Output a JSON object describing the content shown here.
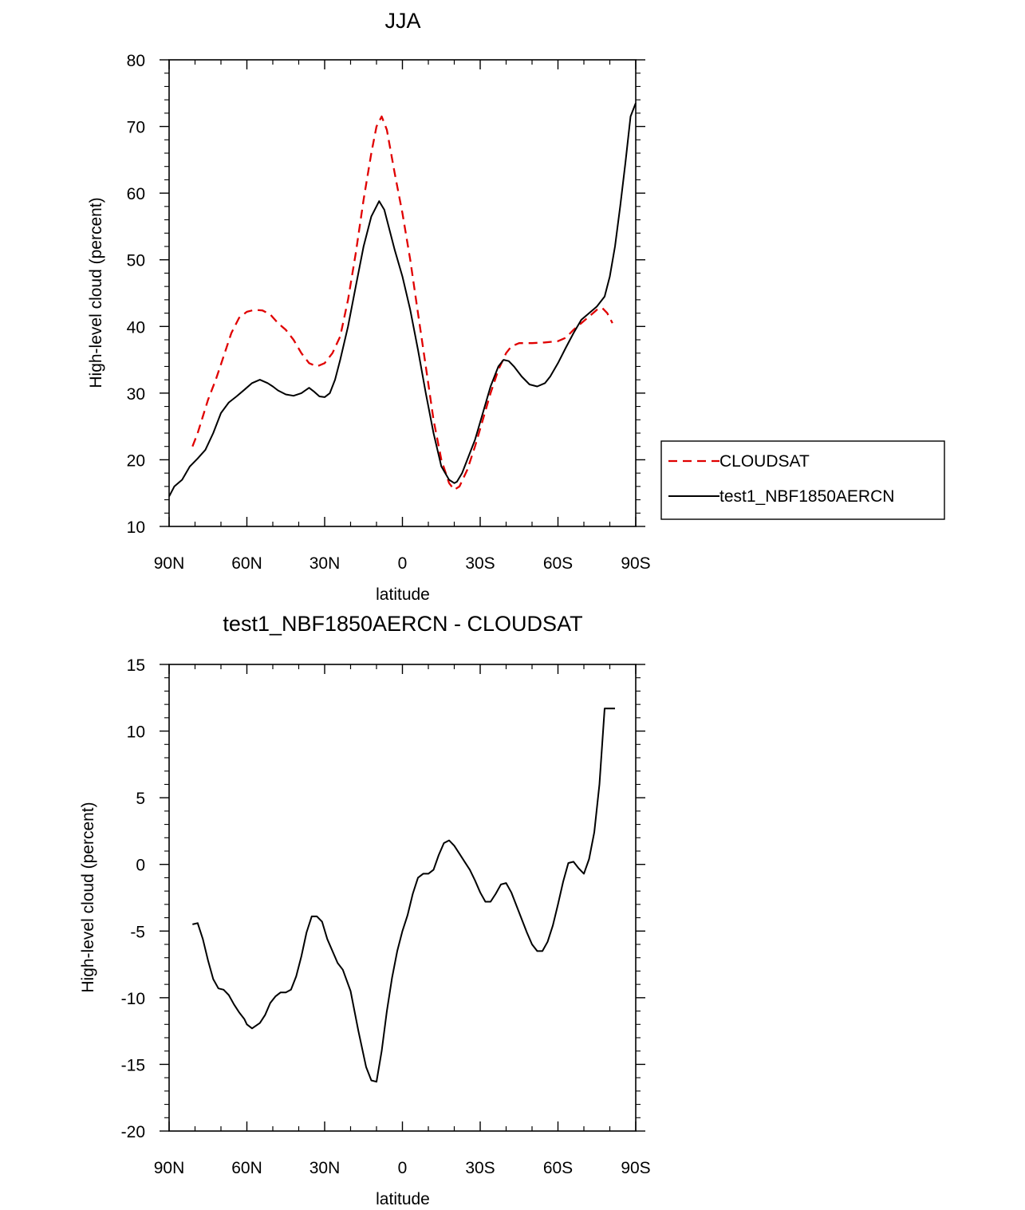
{
  "colors": {
    "cloudsat": "#e00000",
    "model": "#000000"
  },
  "chart_data": [
    {
      "type": "line",
      "title": "JJA",
      "xlabel": "latitude",
      "ylabel": "High-level cloud (percent)",
      "xlim": [
        90,
        -90
      ],
      "ylim": [
        10,
        80
      ],
      "xticks": [
        90,
        60,
        30,
        0,
        -30,
        -60,
        -90
      ],
      "xtick_labels": [
        "90N",
        "60N",
        "30N",
        "0",
        "30S",
        "60S",
        "90S"
      ],
      "yticks": [
        10,
        20,
        30,
        40,
        50,
        60,
        70,
        80
      ],
      "ytick_labels": [
        "10",
        "20",
        "30",
        "40",
        "50",
        "60",
        "70",
        "80"
      ],
      "legend": {
        "placement": "right",
        "entries": [
          {
            "name": "CLOUDSAT",
            "style": "dashed",
            "color": "#e00000"
          },
          {
            "name": "test1_NBF1850AERCN",
            "style": "solid",
            "color": "#000000"
          }
        ]
      },
      "series": [
        {
          "name": "CLOUDSAT",
          "style": "dashed",
          "color": "#e00000",
          "x": [
            81,
            79,
            77,
            75,
            72,
            69,
            66,
            63,
            60,
            57,
            54,
            51,
            48,
            45,
            42,
            39,
            36,
            33,
            30,
            27,
            24,
            21,
            18,
            15,
            12,
            10,
            8,
            6,
            3,
            0,
            -3,
            -6,
            -9,
            -12,
            -15,
            -18,
            -20,
            -22,
            -25,
            -28,
            -31,
            -34,
            -37,
            -40,
            -42,
            -45,
            -50,
            -55,
            -60,
            -63,
            -66,
            -69,
            -72,
            -75,
            -77,
            -79,
            -81
          ],
          "y": [
            22,
            24,
            26.5,
            29,
            32,
            35.5,
            39,
            41.3,
            42.2,
            42.5,
            42.4,
            41.8,
            40.5,
            39.5,
            38,
            36,
            34.5,
            34,
            34.5,
            36,
            38.5,
            44,
            51,
            59,
            66,
            70,
            71.5,
            69.5,
            63,
            57,
            50,
            42,
            34,
            26,
            20,
            16.5,
            15.5,
            16,
            18.5,
            22,
            26,
            30,
            33.5,
            36,
            37,
            37.5,
            37.5,
            37.6,
            37.8,
            38.3,
            39.5,
            40.5,
            41.5,
            42.5,
            42.8,
            42,
            40.5
          ]
        },
        {
          "name": "test1_NBF1850AERCN",
          "style": "solid",
          "color": "#000000",
          "x": [
            90,
            88,
            85,
            82,
            79,
            76,
            73,
            70,
            67,
            64,
            61,
            58,
            55,
            52,
            50,
            48,
            45,
            42,
            39,
            36,
            34,
            32,
            30,
            28,
            26,
            24,
            21,
            18,
            15,
            12,
            9,
            7,
            5,
            3,
            0,
            -3,
            -6,
            -9,
            -12,
            -15,
            -18,
            -20,
            -21,
            -23,
            -25,
            -28,
            -31,
            -34,
            -37,
            -39,
            -41,
            -43,
            -46,
            -49,
            -52,
            -55,
            -57,
            -60,
            -63,
            -66,
            -69,
            -72,
            -75,
            -78,
            -80,
            -82,
            -84,
            -86,
            -88,
            -90
          ],
          "y": [
            14.5,
            16,
            17,
            19,
            20.2,
            21.5,
            24,
            27,
            28.6,
            29.5,
            30.5,
            31.5,
            32,
            31.5,
            31,
            30.4,
            29.8,
            29.6,
            30,
            30.8,
            30.2,
            29.5,
            29.4,
            30,
            32,
            35,
            40,
            46,
            52,
            56.5,
            58.8,
            57.5,
            54.5,
            51.5,
            47.5,
            42.5,
            36.5,
            30,
            24,
            19,
            17,
            16.5,
            16.7,
            18,
            20,
            23,
            27,
            31,
            34,
            35,
            34.8,
            34,
            32.5,
            31.3,
            31,
            31.5,
            32.5,
            34.5,
            36.8,
            39,
            41,
            42,
            43,
            44.5,
            47.5,
            52,
            58,
            64.5,
            71.5,
            73.5
          ]
        }
      ]
    },
    {
      "type": "line",
      "title": "test1_NBF1850AERCN - CLOUDSAT",
      "xlabel": "latitude",
      "ylabel": "High-level cloud (percent)",
      "xlim": [
        90,
        -90
      ],
      "ylim": [
        -20,
        15
      ],
      "xticks": [
        90,
        60,
        30,
        0,
        -30,
        -60,
        -90
      ],
      "xtick_labels": [
        "90N",
        "60N",
        "30N",
        "0",
        "30S",
        "60S",
        "90S"
      ],
      "yticks": [
        -20,
        -15,
        -10,
        -5,
        0,
        5,
        10,
        15
      ],
      "ytick_labels": [
        "-20",
        "-15",
        "-10",
        "-5",
        "0",
        "5",
        "10",
        "15"
      ],
      "series": [
        {
          "name": "",
          "style": "solid",
          "color": "#000000",
          "x": [
            81,
            79,
            77,
            75,
            73,
            71,
            69,
            67,
            65,
            63,
            61,
            60,
            58,
            55,
            53,
            51,
            49,
            47,
            45,
            43,
            41,
            39,
            37,
            35,
            33,
            31,
            29,
            27,
            25,
            23,
            20,
            17,
            14,
            12,
            10,
            8,
            6,
            4,
            2,
            0,
            -2,
            -4,
            -6,
            -8,
            -10,
            -12,
            -14,
            -16,
            -18,
            -20,
            -22,
            -24,
            -26,
            -28,
            -30,
            -32,
            -34,
            -36,
            -38,
            -40,
            -42,
            -44,
            -46,
            -48,
            -50,
            -52,
            -54,
            -56,
            -58,
            -60,
            -62,
            -64,
            -66,
            -68,
            -70,
            -72,
            -74,
            -76,
            -78,
            -80,
            -82
          ],
          "y": [
            -4.5,
            -4.4,
            -5.6,
            -7.2,
            -8.6,
            -9.3,
            -9.4,
            -9.8,
            -10.5,
            -11.1,
            -11.6,
            -12,
            -12.3,
            -11.9,
            -11.3,
            -10.4,
            -9.9,
            -9.6,
            -9.6,
            -9.4,
            -8.4,
            -6.9,
            -5.1,
            -3.9,
            -3.9,
            -4.3,
            -5.6,
            -6.5,
            -7.4,
            -7.9,
            -9.5,
            -12.5,
            -15.2,
            -16.2,
            -16.3,
            -14,
            -11,
            -8.5,
            -6.5,
            -5,
            -3.8,
            -2.2,
            -1,
            -0.7,
            -0.7,
            -0.4,
            0.7,
            1.6,
            1.8,
            1.4,
            0.8,
            0.2,
            -0.4,
            -1.2,
            -2.1,
            -2.8,
            -2.8,
            -2.2,
            -1.5,
            -1.4,
            -2.1,
            -3.1,
            -4.1,
            -5.1,
            -6,
            -6.5,
            -6.5,
            -5.8,
            -4.6,
            -3,
            -1.3,
            0.1,
            0.2,
            -0.3,
            -0.7,
            0.4,
            2.4,
            6,
            11.7,
            11.7,
            11.7
          ]
        }
      ]
    }
  ]
}
